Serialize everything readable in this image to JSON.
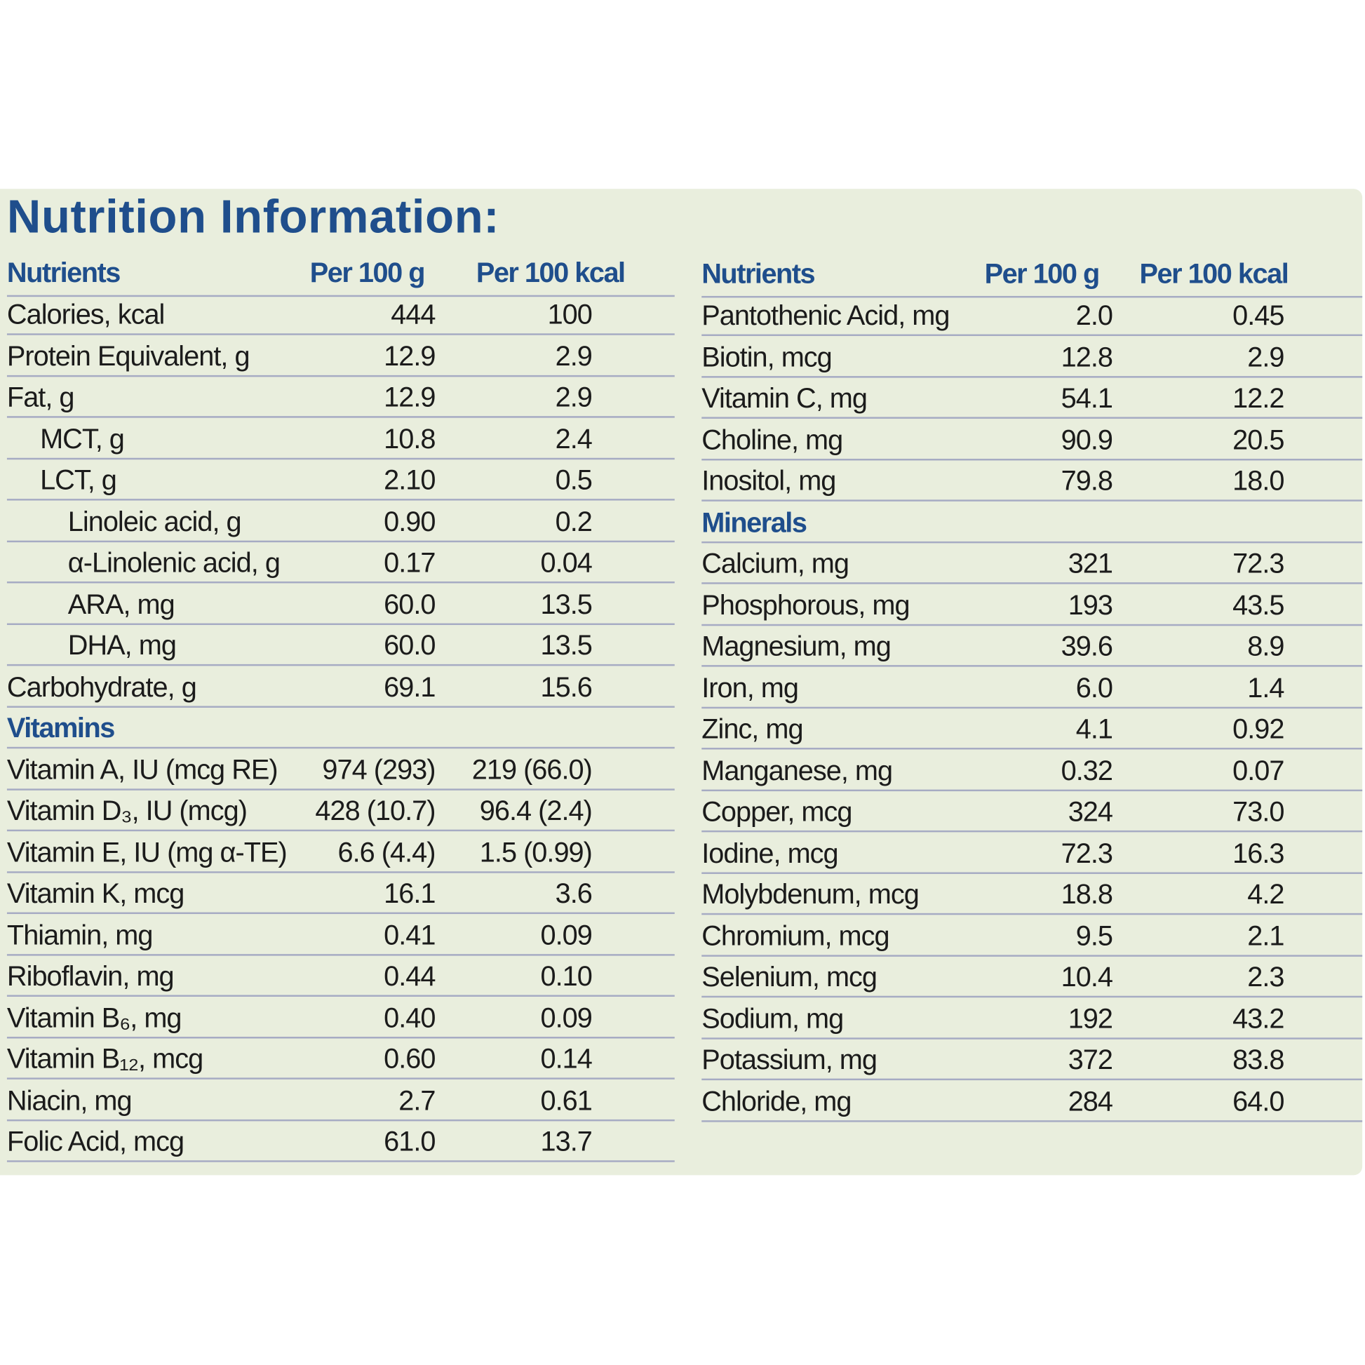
{
  "title": "Nutrition Information:",
  "left_table": {
    "header": [
      "Nutrients",
      "Per 100 g",
      "Per 100 kcal"
    ],
    "rows": [
      {
        "label": "Calories, kcal",
        "values": [
          "444",
          "100"
        ]
      },
      {
        "label": "Protein Equivalent, g",
        "values": [
          "12.9",
          "2.9"
        ]
      },
      {
        "label": "Fat, g",
        "values": [
          "12.9",
          "2.9"
        ],
        "children": [
          {
            "label": "MCT, g",
            "values": [
              "10.8",
              "2.4"
            ]
          },
          {
            "label": "LCT, g",
            "values": [
              "2.10",
              "0.5"
            ],
            "children": [
              {
                "label": "Linoleic acid, g",
                "values": [
                  "0.90",
                  "0.2"
                ]
              },
              {
                "label": "α-Linolenic acid, g",
                "values": [
                  "0.17",
                  "0.04"
                ]
              },
              {
                "label": "ARA, mg",
                "values": [
                  "60.0",
                  "13.5"
                ]
              },
              {
                "label": "DHA, mg",
                "values": [
                  "60.0",
                  "13.5"
                ]
              }
            ]
          }
        ]
      },
      {
        "label": "Carbohydrate, g",
        "values": [
          "69.1",
          "15.6"
        ]
      }
    ],
    "sections": [
      {
        "title": "Vitamins",
        "rows": [
          {
            "label": "Vitamin A, IU (mcg RE)",
            "values": [
              "974 (293)",
              "219 (66.0)"
            ]
          },
          {
            "label": "Vitamin D₃, IU (mcg)",
            "values": [
              "428 (10.7)",
              "96.4 (2.4)"
            ]
          },
          {
            "label": "Vitamin E, IU (mg α-TE)",
            "values": [
              "6.6 (4.4)",
              "1.5 (0.99)"
            ]
          },
          {
            "label": "Vitamin K, mcg",
            "values": [
              "16.1",
              "3.6"
            ]
          },
          {
            "label": "Thiamin, mg",
            "values": [
              "0.41",
              "0.09"
            ]
          },
          {
            "label": "Riboflavin, mg",
            "values": [
              "0.44",
              "0.10"
            ]
          },
          {
            "label": "Vitamin B₆, mg",
            "values": [
              "0.40",
              "0.09"
            ]
          },
          {
            "label": "Vitamin B₁₂, mcg",
            "values": [
              "0.60",
              "0.14"
            ]
          },
          {
            "label": "Niacin, mg",
            "values": [
              "2.7",
              "0.61"
            ]
          },
          {
            "label": "Folic Acid, mcg",
            "values": [
              "61.0",
              "13.7"
            ]
          }
        ]
      }
    ]
  },
  "right_table": {
    "header": [
      "Nutrients",
      "Per 100 g",
      "Per 100 kcal"
    ],
    "rows": [
      {
        "label": "Pantothenic Acid, mg",
        "values": [
          "2.0",
          "0.45"
        ]
      },
      {
        "label": "Biotin, mcg",
        "values": [
          "12.8",
          "2.9"
        ]
      },
      {
        "label": "Vitamin C, mg",
        "values": [
          "54.1",
          "12.2"
        ]
      },
      {
        "label": "Choline, mg",
        "values": [
          "90.9",
          "20.5"
        ]
      },
      {
        "label": "Inositol, mg",
        "values": [
          "79.8",
          "18.0"
        ]
      }
    ],
    "sections": [
      {
        "title": "Minerals",
        "rows": [
          {
            "label": "Calcium, mg",
            "values": [
              "321",
              "72.3"
            ]
          },
          {
            "label": "Phosphorous, mg",
            "values": [
              "193",
              "43.5"
            ]
          },
          {
            "label": "Magnesium, mg",
            "values": [
              "39.6",
              "8.9"
            ]
          },
          {
            "label": "Iron, mg",
            "values": [
              "6.0",
              "1.4"
            ]
          },
          {
            "label": "Zinc, mg",
            "values": [
              "4.1",
              "0.92"
            ]
          },
          {
            "label": "Manganese, mg",
            "values": [
              "0.32",
              "0.07"
            ]
          },
          {
            "label": "Copper, mcg",
            "values": [
              "324",
              "73.0"
            ]
          },
          {
            "label": "Iodine, mcg",
            "values": [
              "72.3",
              "16.3"
            ]
          },
          {
            "label": "Molybdenum, mcg",
            "values": [
              "18.8",
              "4.2"
            ]
          },
          {
            "label": "Chromium, mcg",
            "values": [
              "9.5",
              "2.1"
            ]
          },
          {
            "label": "Selenium, mcg",
            "values": [
              "10.4",
              "2.3"
            ]
          },
          {
            "label": "Sodium, mg",
            "values": [
              "192",
              "43.2"
            ]
          },
          {
            "label": "Potassium, mg",
            "values": [
              "372",
              "83.8"
            ]
          },
          {
            "label": "Chloride, mg",
            "values": [
              "284",
              "64.0"
            ]
          }
        ]
      }
    ]
  }
}
